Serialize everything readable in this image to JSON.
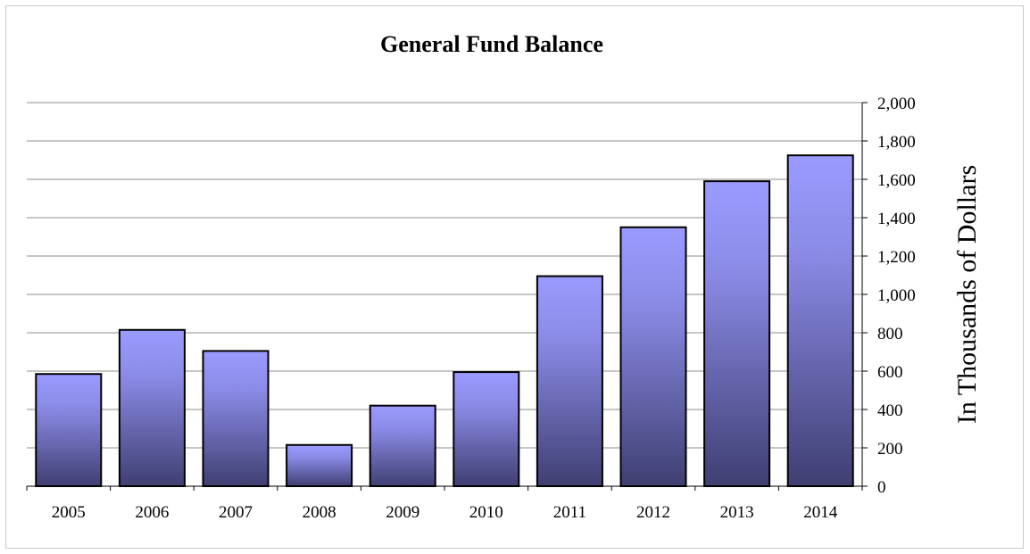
{
  "chart_data": {
    "type": "bar",
    "title": "General Fund Balance",
    "xlabel": "",
    "ylabel": "In Thousands of Dollars",
    "categories": [
      "2005",
      "2006",
      "2007",
      "2008",
      "2009",
      "2010",
      "2011",
      "2012",
      "2013",
      "2014"
    ],
    "values": [
      585,
      815,
      705,
      215,
      420,
      595,
      1095,
      1350,
      1590,
      1725
    ],
    "ylim": [
      0,
      2000
    ],
    "yticks": [
      0,
      200,
      400,
      600,
      800,
      1000,
      1200,
      1400,
      1600,
      1800,
      2000
    ],
    "ytick_labels": [
      "0",
      "200",
      "400",
      "600",
      "800",
      "1,000",
      "1,200",
      "1,400",
      "1,600",
      "1,800",
      "2,000"
    ],
    "yaxis_position": "right",
    "grid": true,
    "legend": "none",
    "colors": {
      "bar_top": "#9b9bff",
      "bar_bottom": "#3f3f72",
      "bar_outline": "#000000",
      "grid": "#8c8c8c"
    }
  }
}
